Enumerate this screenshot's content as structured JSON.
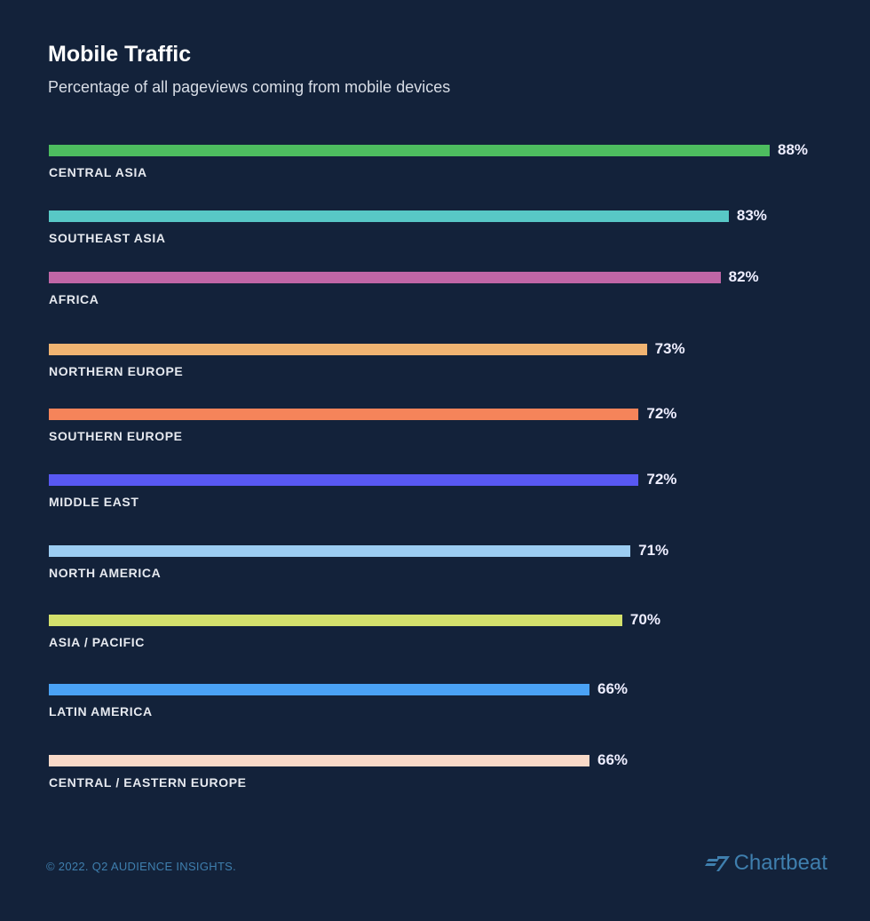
{
  "chart_data": {
    "type": "bar",
    "orientation": "horizontal",
    "title": "Mobile Traffic",
    "subtitle": "Percentage of all pageviews coming from mobile devices",
    "categories": [
      "CENTRAL ASIA",
      "SOUTHEAST ASIA",
      "AFRICA",
      "NORTHERN EUROPE",
      "SOUTHERN EUROPE",
      "MIDDLE EAST",
      "NORTH AMERICA",
      "ASIA / PACIFIC",
      "LATIN AMERICA",
      "CENTRAL / EASTERN EUROPE"
    ],
    "values": [
      88,
      83,
      82,
      73,
      72,
      72,
      71,
      70,
      66,
      66
    ],
    "value_labels": [
      "88%",
      "83%",
      "82%",
      "73%",
      "72%",
      "72%",
      "71%",
      "70%",
      "66%",
      "66%"
    ],
    "colors": [
      "#4dbd5f",
      "#58c8c6",
      "#c066a6",
      "#f0b472",
      "#f5845a",
      "#5858f2",
      "#9ccdf2",
      "#d3e06c",
      "#4aa2f5",
      "#f8d9c8"
    ],
    "xlim": [
      0,
      88
    ],
    "grid": false,
    "legend": "none"
  },
  "footer": "© 2022. Q2 AUDIENCE INSIGHTS.",
  "logo": "Chartbeat"
}
